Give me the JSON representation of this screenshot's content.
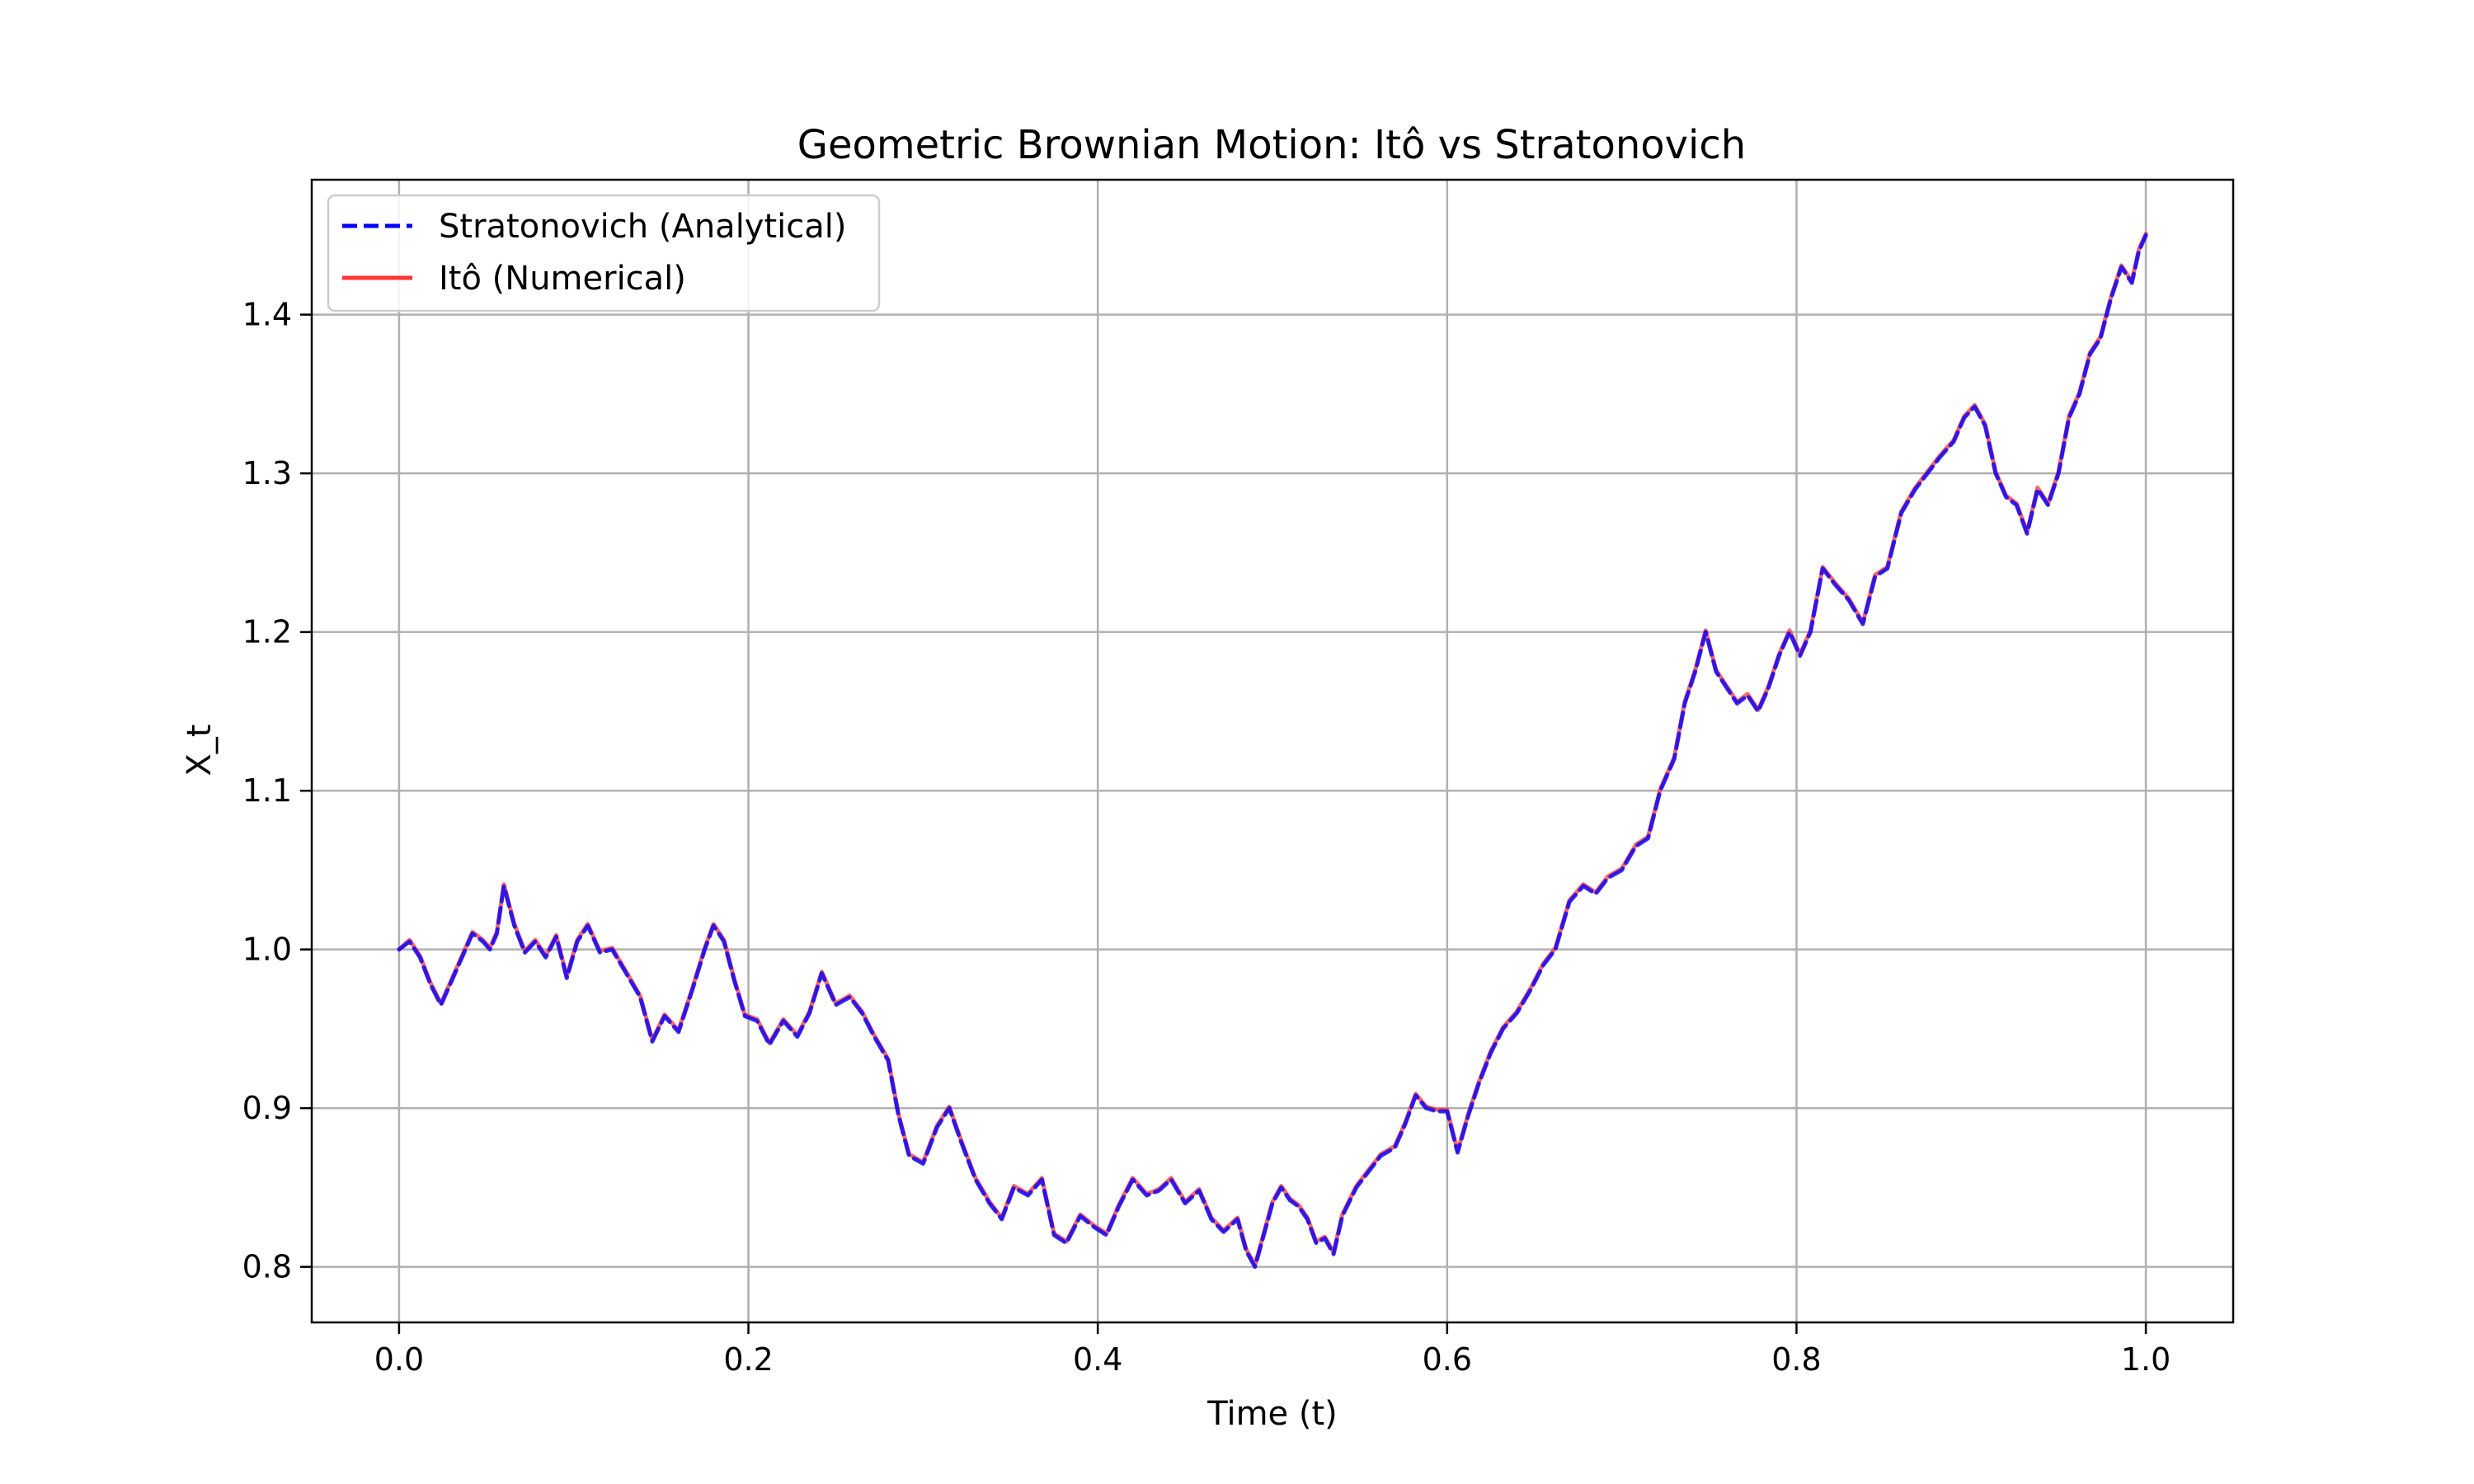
{
  "chart_data": {
    "type": "line",
    "title": "Geometric Brownian Motion: Itô vs Stratonovich",
    "xlabel": "Time (t)",
    "ylabel": "X_t",
    "xlim": [
      -0.05,
      1.05
    ],
    "ylim": [
      0.765,
      1.485
    ],
    "xticks": [
      0.0,
      0.2,
      0.4,
      0.6,
      0.8,
      1.0
    ],
    "xtick_labels": [
      "0.0",
      "0.2",
      "0.4",
      "0.6",
      "0.8",
      "1.0"
    ],
    "yticks": [
      0.8,
      0.9,
      1.0,
      1.1,
      1.2,
      1.3,
      1.4
    ],
    "ytick_labels": [
      "0.8",
      "0.9",
      "1.0",
      "1.1",
      "1.2",
      "1.3",
      "1.4"
    ],
    "grid": true,
    "legend_position": "upper-left",
    "x": [
      0.0,
      0.006,
      0.012,
      0.018,
      0.024,
      0.03,
      0.036,
      0.042,
      0.048,
      0.052,
      0.056,
      0.06,
      0.066,
      0.072,
      0.078,
      0.084,
      0.09,
      0.096,
      0.102,
      0.108,
      0.115,
      0.122,
      0.13,
      0.138,
      0.145,
      0.152,
      0.16,
      0.168,
      0.175,
      0.18,
      0.186,
      0.192,
      0.198,
      0.205,
      0.212,
      0.22,
      0.228,
      0.235,
      0.242,
      0.25,
      0.258,
      0.265,
      0.272,
      0.28,
      0.286,
      0.292,
      0.3,
      0.308,
      0.315,
      0.322,
      0.33,
      0.338,
      0.345,
      0.352,
      0.36,
      0.368,
      0.375,
      0.382,
      0.39,
      0.398,
      0.405,
      0.412,
      0.42,
      0.428,
      0.435,
      0.442,
      0.45,
      0.458,
      0.465,
      0.472,
      0.48,
      0.485,
      0.49,
      0.495,
      0.5,
      0.505,
      0.51,
      0.515,
      0.52,
      0.525,
      0.53,
      0.535,
      0.54,
      0.548,
      0.555,
      0.562,
      0.57,
      0.576,
      0.582,
      0.588,
      0.594,
      0.6,
      0.606,
      0.612,
      0.618,
      0.625,
      0.632,
      0.64,
      0.648,
      0.655,
      0.662,
      0.67,
      0.678,
      0.685,
      0.692,
      0.7,
      0.708,
      0.715,
      0.722,
      0.73,
      0.736,
      0.742,
      0.748,
      0.754,
      0.76,
      0.766,
      0.772,
      0.778,
      0.784,
      0.79,
      0.796,
      0.802,
      0.808,
      0.815,
      0.822,
      0.83,
      0.838,
      0.845,
      0.852,
      0.86,
      0.868,
      0.875,
      0.882,
      0.89,
      0.896,
      0.902,
      0.908,
      0.914,
      0.92,
      0.926,
      0.932,
      0.938,
      0.944,
      0.95,
      0.956,
      0.962,
      0.968,
      0.974,
      0.98,
      0.986,
      0.992,
      0.996,
      1.0
    ],
    "series": [
      {
        "name": "Stratonovich (Analytical)",
        "color": "#0000ff",
        "style": "dashed",
        "values": [
          1.0,
          1.005,
          0.995,
          0.978,
          0.965,
          0.98,
          0.995,
          1.01,
          1.005,
          1.0,
          1.01,
          1.04,
          1.015,
          0.998,
          1.005,
          0.995,
          1.008,
          0.982,
          1.005,
          1.015,
          0.998,
          1.0,
          0.985,
          0.97,
          0.942,
          0.958,
          0.948,
          0.975,
          1.0,
          1.015,
          1.005,
          0.98,
          0.958,
          0.955,
          0.94,
          0.955,
          0.945,
          0.96,
          0.985,
          0.965,
          0.97,
          0.96,
          0.945,
          0.93,
          0.895,
          0.87,
          0.865,
          0.888,
          0.9,
          0.878,
          0.855,
          0.84,
          0.83,
          0.85,
          0.845,
          0.855,
          0.82,
          0.815,
          0.832,
          0.825,
          0.82,
          0.838,
          0.855,
          0.845,
          0.848,
          0.855,
          0.84,
          0.848,
          0.83,
          0.822,
          0.83,
          0.81,
          0.8,
          0.82,
          0.84,
          0.85,
          0.842,
          0.838,
          0.83,
          0.815,
          0.818,
          0.808,
          0.832,
          0.85,
          0.86,
          0.87,
          0.875,
          0.89,
          0.908,
          0.9,
          0.898,
          0.898,
          0.872,
          0.895,
          0.915,
          0.935,
          0.95,
          0.96,
          0.975,
          0.99,
          1.0,
          1.03,
          1.04,
          1.035,
          1.045,
          1.05,
          1.065,
          1.07,
          1.1,
          1.12,
          1.155,
          1.175,
          1.2,
          1.175,
          1.165,
          1.155,
          1.16,
          1.15,
          1.165,
          1.185,
          1.2,
          1.185,
          1.2,
          1.24,
          1.23,
          1.22,
          1.205,
          1.235,
          1.24,
          1.275,
          1.29,
          1.3,
          1.31,
          1.32,
          1.335,
          1.342,
          1.33,
          1.3,
          1.285,
          1.28,
          1.262,
          1.29,
          1.28,
          1.3,
          1.335,
          1.35,
          1.375,
          1.385,
          1.41,
          1.43,
          1.42,
          1.44,
          1.45
        ]
      },
      {
        "name": "Itô (Numerical)",
        "color": "#ff3333",
        "style": "solid",
        "values": [
          1.0,
          1.006,
          0.996,
          0.979,
          0.966,
          0.981,
          0.996,
          1.011,
          1.006,
          1.001,
          1.011,
          1.041,
          1.016,
          0.999,
          1.006,
          0.996,
          1.009,
          0.983,
          1.006,
          1.016,
          0.999,
          1.001,
          0.986,
          0.971,
          0.943,
          0.959,
          0.949,
          0.976,
          1.001,
          1.016,
          1.006,
          0.981,
          0.959,
          0.956,
          0.941,
          0.956,
          0.946,
          0.961,
          0.986,
          0.966,
          0.971,
          0.961,
          0.946,
          0.931,
          0.896,
          0.871,
          0.866,
          0.889,
          0.901,
          0.879,
          0.856,
          0.841,
          0.831,
          0.851,
          0.846,
          0.856,
          0.821,
          0.816,
          0.833,
          0.826,
          0.821,
          0.839,
          0.856,
          0.846,
          0.849,
          0.856,
          0.841,
          0.849,
          0.831,
          0.823,
          0.831,
          0.811,
          0.801,
          0.821,
          0.841,
          0.851,
          0.843,
          0.839,
          0.831,
          0.816,
          0.819,
          0.809,
          0.833,
          0.851,
          0.861,
          0.871,
          0.876,
          0.891,
          0.909,
          0.901,
          0.899,
          0.899,
          0.873,
          0.896,
          0.916,
          0.936,
          0.951,
          0.961,
          0.976,
          0.991,
          1.001,
          1.031,
          1.041,
          1.036,
          1.046,
          1.051,
          1.066,
          1.071,
          1.101,
          1.121,
          1.156,
          1.176,
          1.201,
          1.176,
          1.166,
          1.156,
          1.161,
          1.151,
          1.166,
          1.186,
          1.201,
          1.186,
          1.201,
          1.241,
          1.231,
          1.221,
          1.206,
          1.236,
          1.241,
          1.276,
          1.291,
          1.301,
          1.311,
          1.321,
          1.336,
          1.343,
          1.331,
          1.301,
          1.286,
          1.281,
          1.263,
          1.291,
          1.281,
          1.301,
          1.336,
          1.351,
          1.376,
          1.386,
          1.411,
          1.431,
          1.421,
          1.441,
          1.451
        ]
      }
    ]
  }
}
